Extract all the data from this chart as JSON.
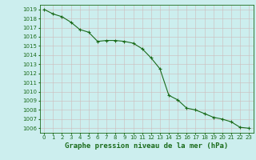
{
  "x": [
    0,
    1,
    2,
    3,
    4,
    5,
    6,
    7,
    8,
    9,
    10,
    11,
    12,
    13,
    14,
    15,
    16,
    17,
    18,
    19,
    20,
    21,
    22,
    23
  ],
  "y": [
    1019.0,
    1018.5,
    1018.2,
    1017.6,
    1016.8,
    1016.5,
    1015.5,
    1015.6,
    1015.6,
    1015.5,
    1015.3,
    1014.7,
    1013.7,
    1012.5,
    1009.6,
    1009.1,
    1008.2,
    1008.0,
    1007.6,
    1007.2,
    1007.0,
    1006.7,
    1006.1,
    1006.0
  ],
  "line_color": "#1a6b1a",
  "marker": "+",
  "bg_color": "#cceeee",
  "grid_color": "#bbbbbb",
  "xlabel": "Graphe pression niveau de la mer (hPa)",
  "xlim": [
    -0.5,
    23.5
  ],
  "ylim": [
    1005.5,
    1019.5
  ],
  "yticks": [
    1006,
    1007,
    1008,
    1009,
    1010,
    1011,
    1012,
    1013,
    1014,
    1015,
    1016,
    1017,
    1018,
    1019
  ],
  "xticks": [
    0,
    1,
    2,
    3,
    4,
    5,
    6,
    7,
    8,
    9,
    10,
    11,
    12,
    13,
    14,
    15,
    16,
    17,
    18,
    19,
    20,
    21,
    22,
    23
  ],
  "tick_fontsize": 5,
  "xlabel_fontsize": 6.5,
  "line_width": 0.8,
  "marker_size": 3
}
